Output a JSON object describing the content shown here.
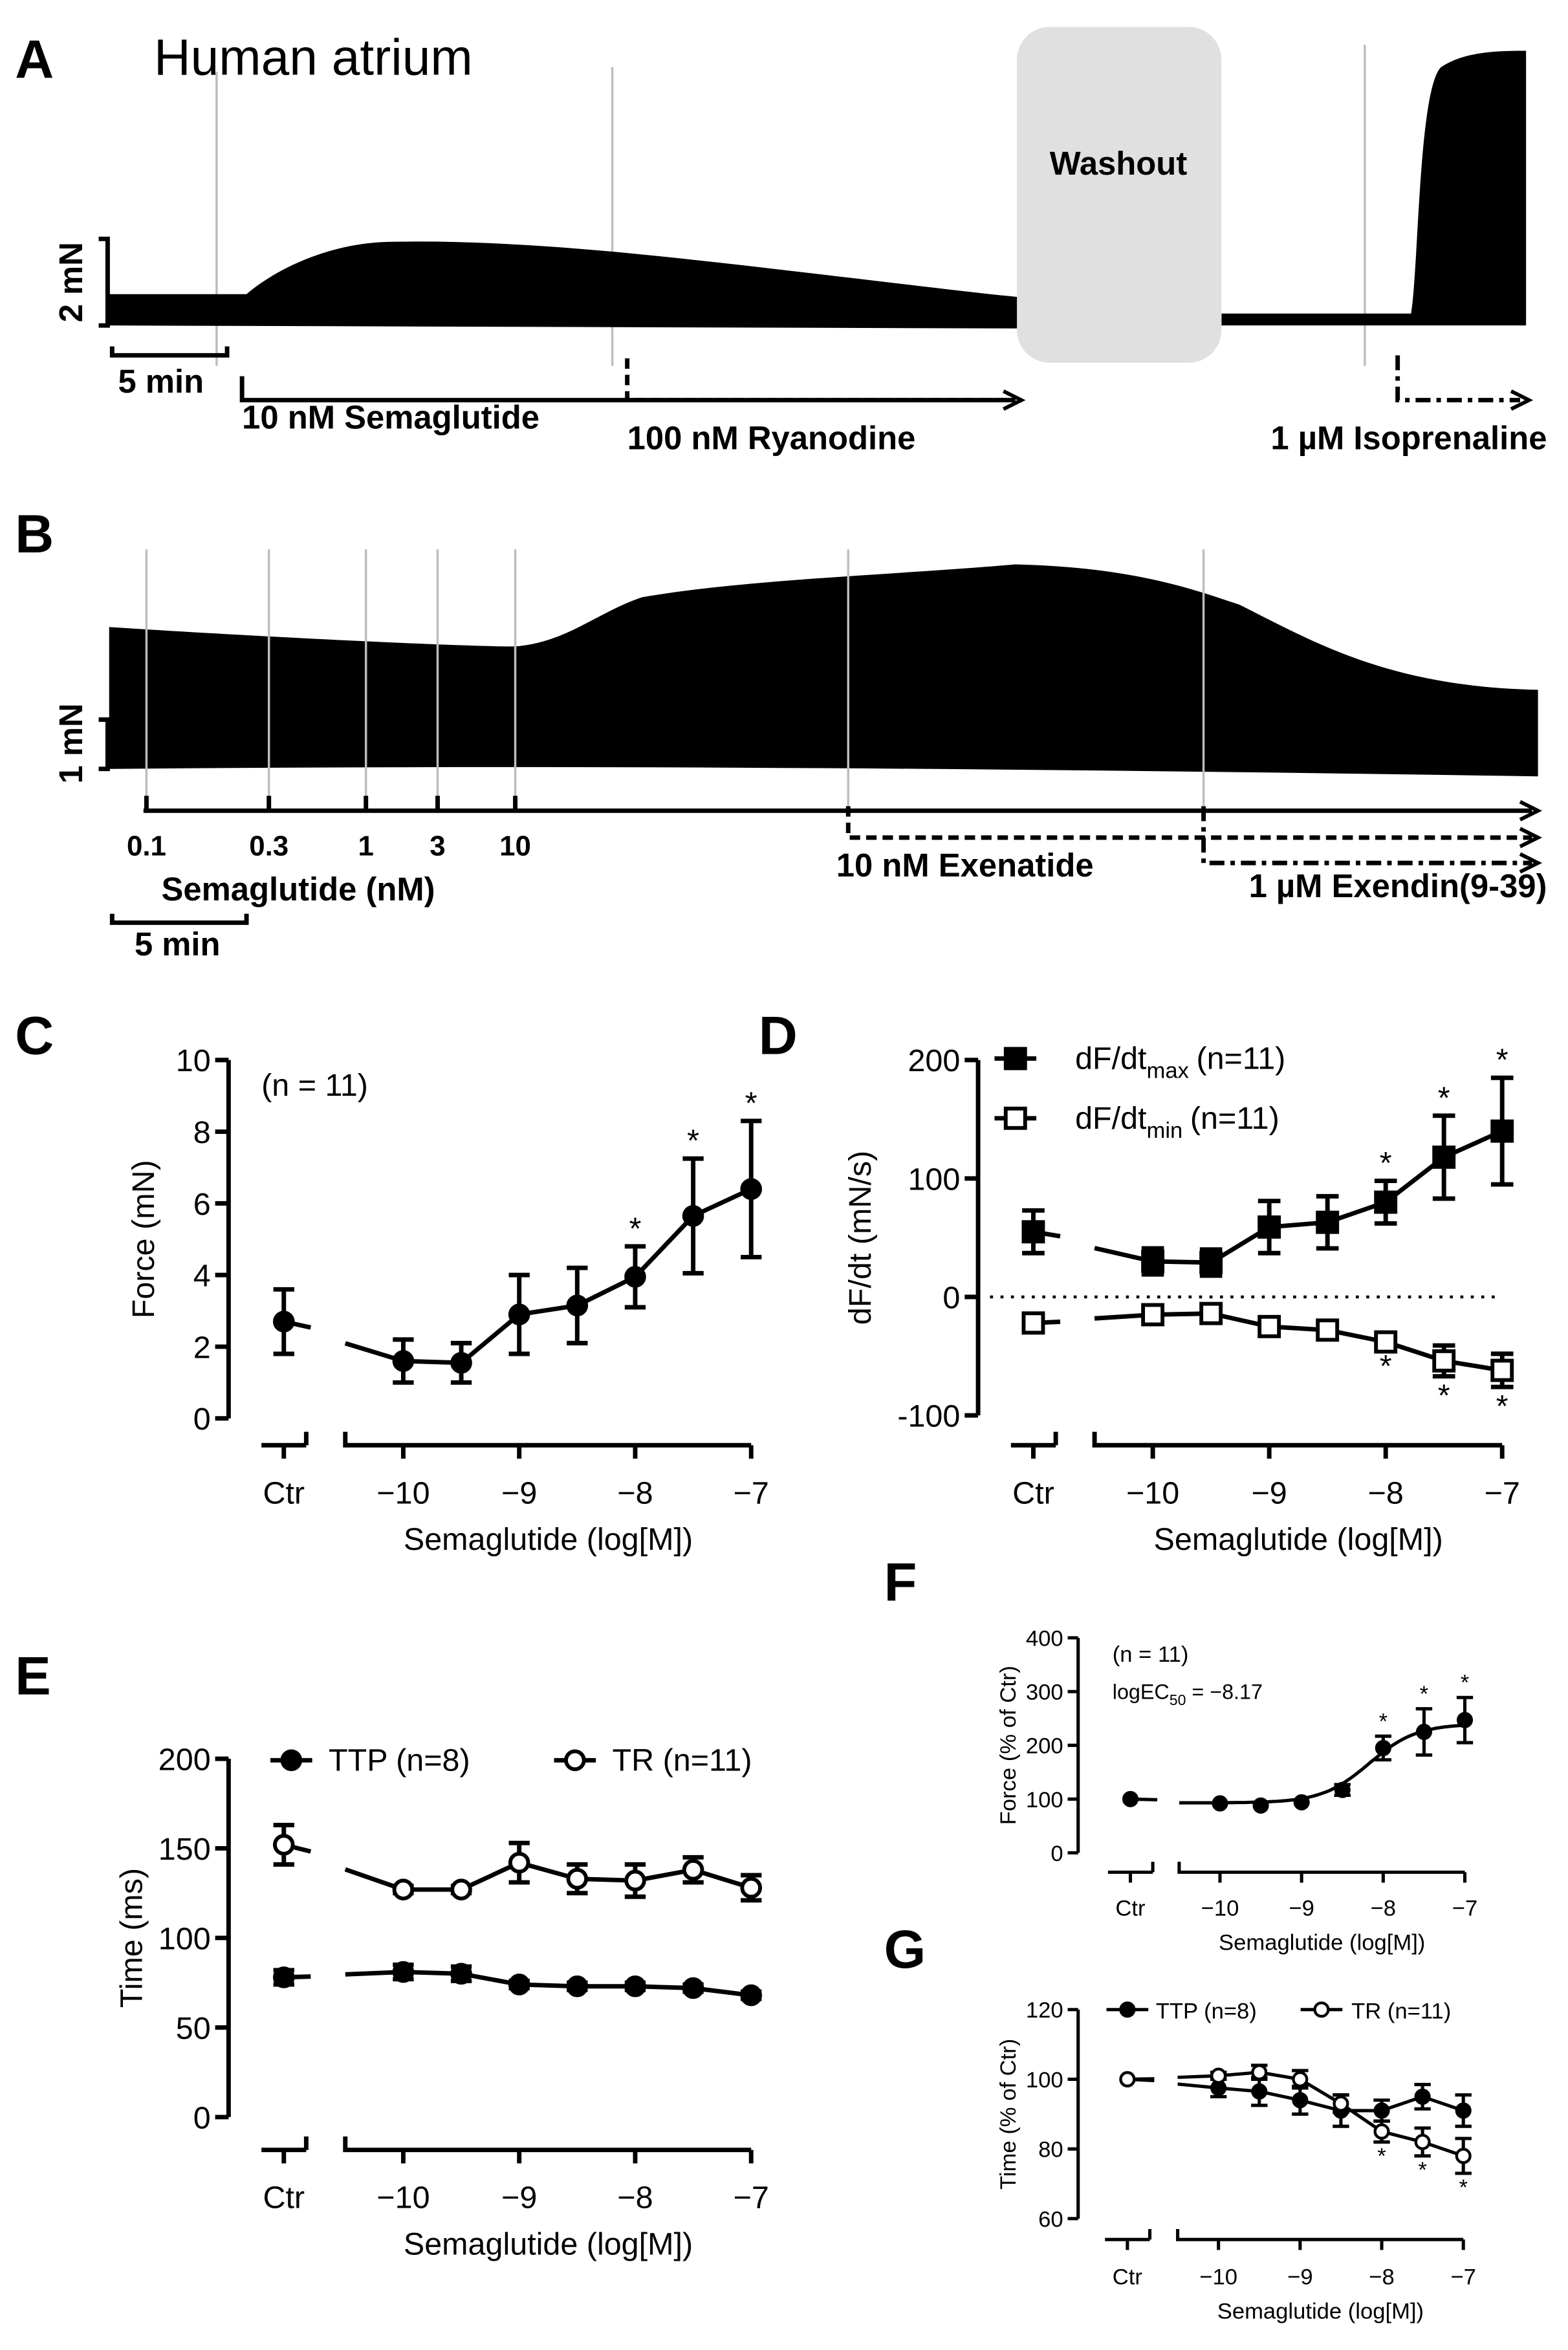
{
  "panel_labels": {
    "a": "A",
    "b": "B",
    "c": "C",
    "d": "D",
    "e": "E",
    "f": "F",
    "g": "G"
  },
  "panel_a": {
    "title": "Human atrium",
    "washout": "Washout",
    "force_scale": "2 mN",
    "time_scale": "5 min",
    "drug1": "10 nM Semaglutide",
    "drug2": "100 nM Ryanodine",
    "drug3": "1 µM Isoprenaline"
  },
  "panel_b": {
    "force_scale": "1 mN",
    "time_scale": "5 min",
    "concentrations": [
      "0.1",
      "0.3",
      "1",
      "3",
      "10"
    ],
    "drug1": "Semaglutide (nM)",
    "drug2": "10 nM Exenatide",
    "drug3": "1 µM Exendin(9-39)"
  },
  "chart_data": [
    {
      "id": "C",
      "type": "line",
      "title": "",
      "annotation": "(n = 11)",
      "xlabel": "Semaglutide (log[M])",
      "ylabel": "Force (mN)",
      "ylim": [
        0,
        10
      ],
      "yticks": [
        0,
        2,
        4,
        6,
        8,
        10
      ],
      "xticks": [
        -10,
        -9,
        -8,
        -7
      ],
      "xtick_labels": [
        "−10",
        "−9",
        "−8",
        "−7"
      ],
      "ctr_label": "Ctr",
      "series": [
        {
          "name": "Force",
          "marker": "circle-filled",
          "ctr": {
            "y": 2.7,
            "err": 0.9
          },
          "x": [
            -10,
            -9.5,
            -9,
            -8.5,
            -8,
            -7.5,
            -7
          ],
          "y": [
            1.6,
            1.55,
            2.9,
            3.15,
            3.95,
            5.65,
            6.4
          ],
          "err": [
            0.6,
            0.55,
            1.1,
            1.05,
            0.85,
            1.6,
            1.9
          ],
          "stars": [
            false,
            false,
            false,
            false,
            true,
            true,
            true
          ],
          "star_pos": "above"
        }
      ]
    },
    {
      "id": "D",
      "type": "line",
      "title": "",
      "xlabel": "Semaglutide (log[M])",
      "ylabel": "dF/dt (mN/s)",
      "ylim": [
        -100,
        200
      ],
      "yticks": [
        -100,
        0,
        100,
        200
      ],
      "zero_line": true,
      "xticks": [
        -10,
        -9,
        -8,
        -7
      ],
      "xtick_labels": [
        "−10",
        "−9",
        "−8",
        "−7"
      ],
      "ctr_label": "Ctr",
      "legend": [
        {
          "name": "dF/dt",
          "sub": "max",
          "n": "(n=11)"
        },
        {
          "name": "dF/dt",
          "sub": "min",
          "n": "(n=11)"
        }
      ],
      "series": [
        {
          "name": "dF/dtmax (n=11)",
          "marker": "square-filled",
          "ctr": {
            "y": 55,
            "err": 18
          },
          "x": [
            -10,
            -9.5,
            -9,
            -8.5,
            -8,
            -7.5,
            -7
          ],
          "y": [
            30,
            29,
            59,
            63,
            80,
            118,
            140
          ],
          "err": [
            11,
            11,
            22,
            22,
            18,
            35,
            45
          ],
          "stars": [
            false,
            false,
            false,
            false,
            true,
            true,
            true
          ],
          "star_pos": "above"
        },
        {
          "name": "dF/dtmin (n=11)",
          "marker": "square-open",
          "ctr": {
            "y": -22,
            "err": 4
          },
          "x": [
            -10,
            -9.5,
            -9,
            -8.5,
            -8,
            -7.5,
            -7
          ],
          "y": [
            -15,
            -14,
            -25,
            -28,
            -38,
            -54,
            -62
          ],
          "err": [
            3,
            3,
            4,
            4,
            4,
            13,
            14
          ],
          "stars": [
            false,
            false,
            false,
            false,
            true,
            true,
            true
          ],
          "star_pos": "below"
        }
      ]
    },
    {
      "id": "E",
      "type": "line",
      "title": "",
      "xlabel": "Semaglutide (log[M])",
      "ylabel": "Time (ms)",
      "ylim": [
        0,
        200
      ],
      "yticks": [
        0,
        50,
        100,
        150,
        200
      ],
      "xticks": [
        -10,
        -9,
        -8,
        -7
      ],
      "xtick_labels": [
        "−10",
        "−9",
        "−8",
        "−7"
      ],
      "ctr_label": "Ctr",
      "legend": [
        {
          "name": "TTP (n=8)"
        },
        {
          "name": "TR (n=11)"
        }
      ],
      "series": [
        {
          "name": "TTP (n=8)",
          "marker": "circle-filled",
          "ctr": {
            "y": 78,
            "err": 4
          },
          "x": [
            -10,
            -9.5,
            -9,
            -8.5,
            -8,
            -7.5,
            -7
          ],
          "y": [
            81,
            80,
            74,
            73,
            73,
            72,
            68
          ],
          "err": [
            4,
            4,
            2,
            2,
            2,
            2,
            2
          ],
          "stars": [
            false,
            false,
            false,
            false,
            false,
            false,
            false
          ],
          "star_pos": "above"
        },
        {
          "name": "TR (n=11)",
          "marker": "circle-open",
          "ctr": {
            "y": 152,
            "err": 11
          },
          "x": [
            -10,
            -9.5,
            -9,
            -8.5,
            -8,
            -7.5,
            -7
          ],
          "y": [
            127,
            127,
            142,
            133,
            132,
            138,
            128
          ],
          "err": [
            2,
            2,
            11,
            8,
            9,
            7,
            7
          ],
          "stars": [
            false,
            false,
            false,
            false,
            false,
            false,
            false
          ],
          "star_pos": "above"
        }
      ]
    },
    {
      "id": "F",
      "type": "line",
      "title": "",
      "annotation": "(n = 11)",
      "ec50_label": {
        "name": "logEC",
        "sub": "50",
        "value": " = −8.17"
      },
      "fit": {
        "bottom": 93,
        "top": 240,
        "logEC50": -8.17,
        "hill": 1.5
      },
      "xlabel": "Semaglutide (log[M])",
      "ylabel": "Force (% of Ctr)",
      "ylim": [
        0,
        400
      ],
      "yticks": [
        0,
        100,
        200,
        300,
        400
      ],
      "xticks": [
        -10,
        -9,
        -8,
        -7
      ],
      "xtick_labels": [
        "−10",
        "−9",
        "−8",
        "−7"
      ],
      "ctr_label": "Ctr",
      "series": [
        {
          "name": "Force",
          "marker": "circle-filled",
          "ctr": {
            "y": 100,
            "err": 0
          },
          "x": [
            -10,
            -9.5,
            -9,
            -8.5,
            -8,
            -7.5,
            -7
          ],
          "y": [
            92,
            88,
            94,
            117,
            195,
            225,
            247
          ],
          "err": [
            0,
            0,
            0,
            10,
            22,
            43,
            42
          ],
          "stars": [
            false,
            false,
            false,
            false,
            true,
            true,
            true
          ],
          "star_pos": "above"
        }
      ]
    },
    {
      "id": "G",
      "type": "line",
      "title": "",
      "xlabel": "Semaglutide (log[M])",
      "ylabel": "Time (% of Ctr)",
      "ylim": [
        60,
        120
      ],
      "yticks": [
        60,
        80,
        100,
        120
      ],
      "xticks": [
        -10,
        -9,
        -8,
        -7
      ],
      "xtick_labels": [
        "−10",
        "−9",
        "−8",
        "−7"
      ],
      "ctr_label": "Ctr",
      "legend": [
        {
          "name": "TTP (n=8)"
        },
        {
          "name": "TR (n=11)"
        }
      ],
      "series": [
        {
          "name": "TTP (n=8)",
          "marker": "circle-filled",
          "ctr": {
            "y": 100,
            "err": 0
          },
          "x": [
            -10,
            -9.5,
            -9,
            -8.5,
            -8,
            -7.5,
            -7
          ],
          "y": [
            97.5,
            96.5,
            94,
            91,
            91,
            95,
            91
          ],
          "err": [
            2.5,
            4,
            4,
            4.5,
            3,
            3.5,
            4.5
          ],
          "stars": [
            false,
            false,
            false,
            false,
            false,
            false,
            false
          ],
          "star_pos": "above"
        },
        {
          "name": "TR (n=11)",
          "marker": "circle-open",
          "ctr": {
            "y": 100,
            "err": 0
          },
          "x": [
            -10,
            -9.5,
            -9,
            -8.5,
            -8,
            -7.5,
            -7
          ],
          "y": [
            101,
            102,
            100,
            93,
            85,
            82,
            78
          ],
          "err": [
            1,
            2,
            2.5,
            2.5,
            3,
            4,
            5
          ],
          "stars": [
            false,
            false,
            false,
            false,
            true,
            true,
            true
          ],
          "star_pos": "below"
        }
      ]
    }
  ]
}
